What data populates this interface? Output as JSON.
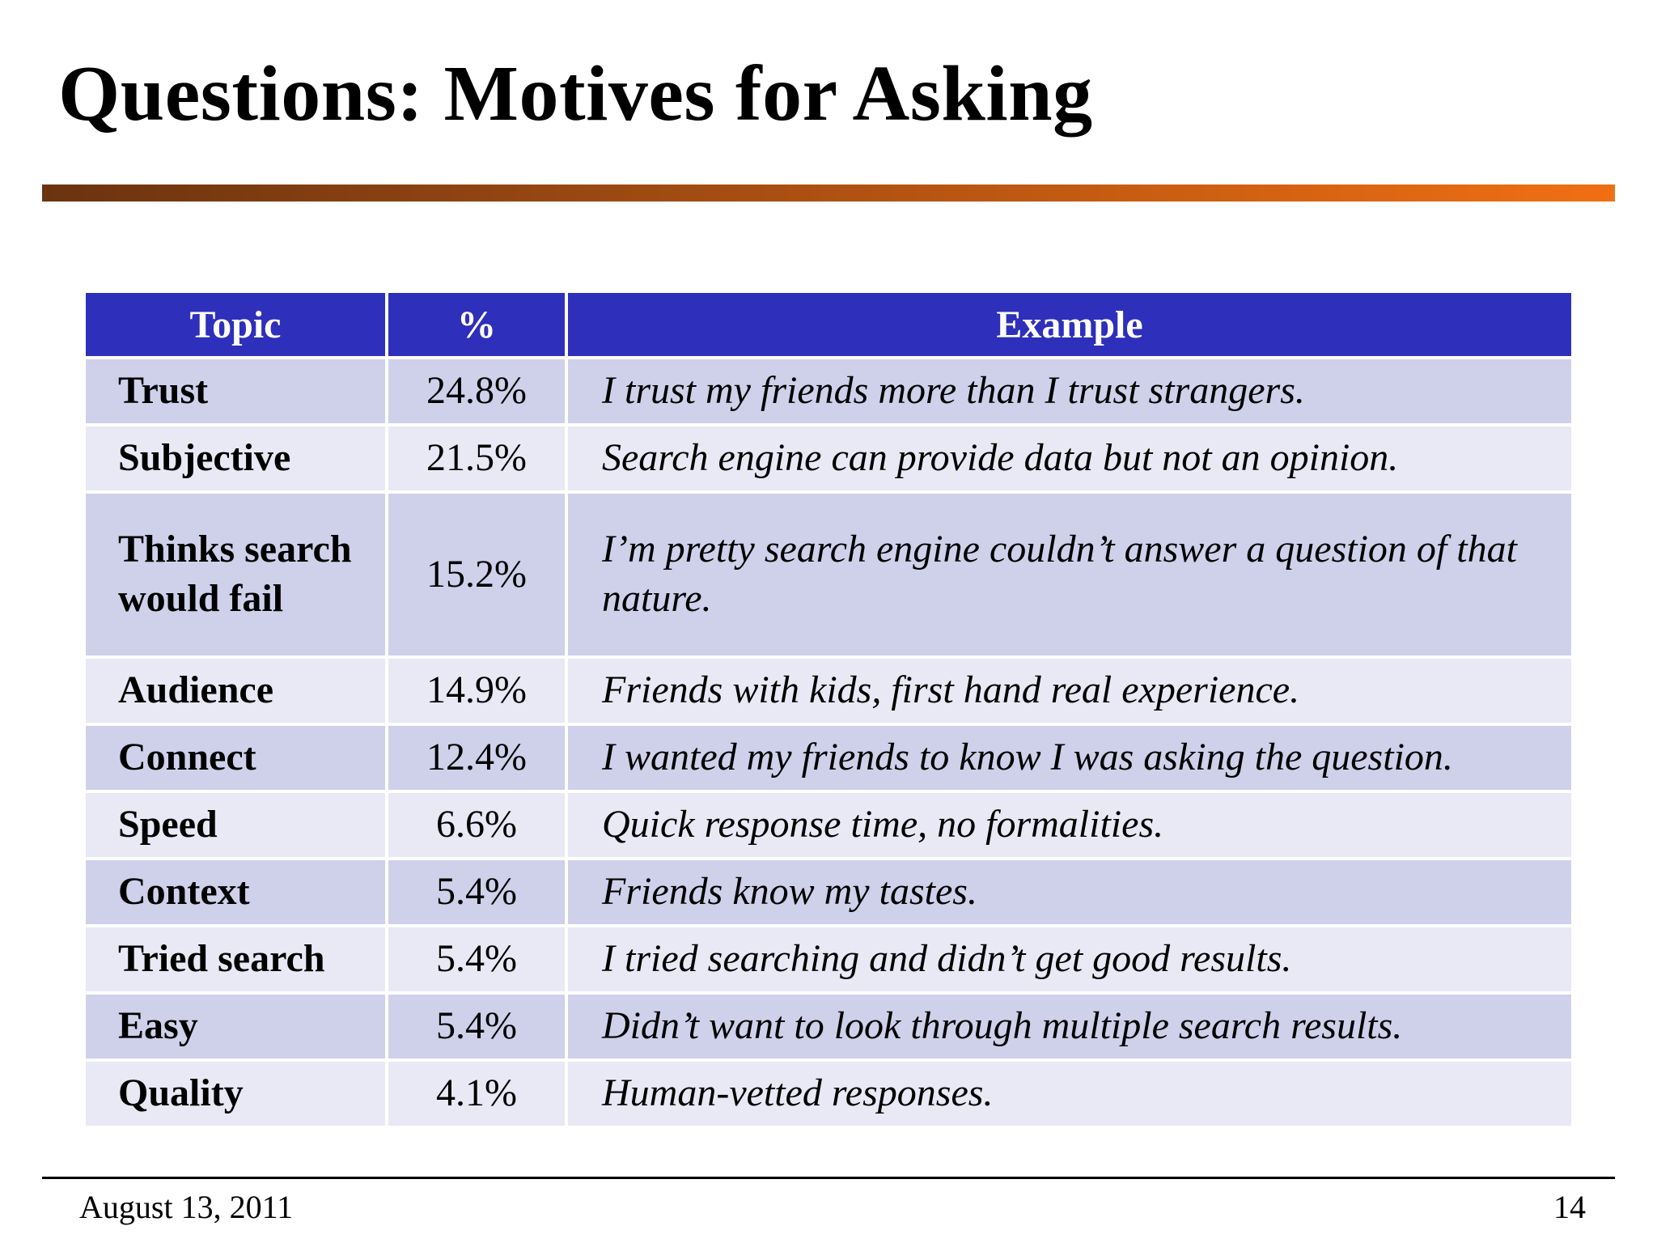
{
  "slide": {
    "title": "Questions: Motives for Asking",
    "date": "August 13, 2011",
    "page_number": "14"
  },
  "colors": {
    "header_bg": "#2e2fba",
    "row_dark": "#cfd0ea",
    "row_light": "#e9e9f5",
    "accent_start": "#6b3310",
    "accent_end": "#f16f13"
  },
  "table": {
    "headers": [
      "Topic",
      "%",
      "Example"
    ],
    "rows": [
      {
        "topic": "Trust",
        "percent": "24.8%",
        "example": "I trust my friends more than I trust strangers."
      },
      {
        "topic": "Subjective",
        "percent": "21.5%",
        "example": "Search engine can provide data but not an opinion."
      },
      {
        "topic": "Thinks search would fail",
        "percent": "15.2%",
        "example": "I’m pretty search engine couldn’t answer a question of that nature."
      },
      {
        "topic": "Audience",
        "percent": "14.9%",
        "example": "Friends with kids, first hand real experience."
      },
      {
        "topic": "Connect",
        "percent": "12.4%",
        "example": "I wanted my friends to know I was asking the question."
      },
      {
        "topic": "Speed",
        "percent": "6.6%",
        "example": "Quick response time, no formalities."
      },
      {
        "topic": "Context",
        "percent": "5.4%",
        "example": "Friends know my tastes."
      },
      {
        "topic": "Tried search",
        "percent": "5.4%",
        "example": "I tried searching and didn’t get good results."
      },
      {
        "topic": "Easy",
        "percent": "5.4%",
        "example": "Didn’t want to look through multiple search results."
      },
      {
        "topic": "Quality",
        "percent": "4.1%",
        "example": "Human-vetted responses."
      }
    ]
  }
}
